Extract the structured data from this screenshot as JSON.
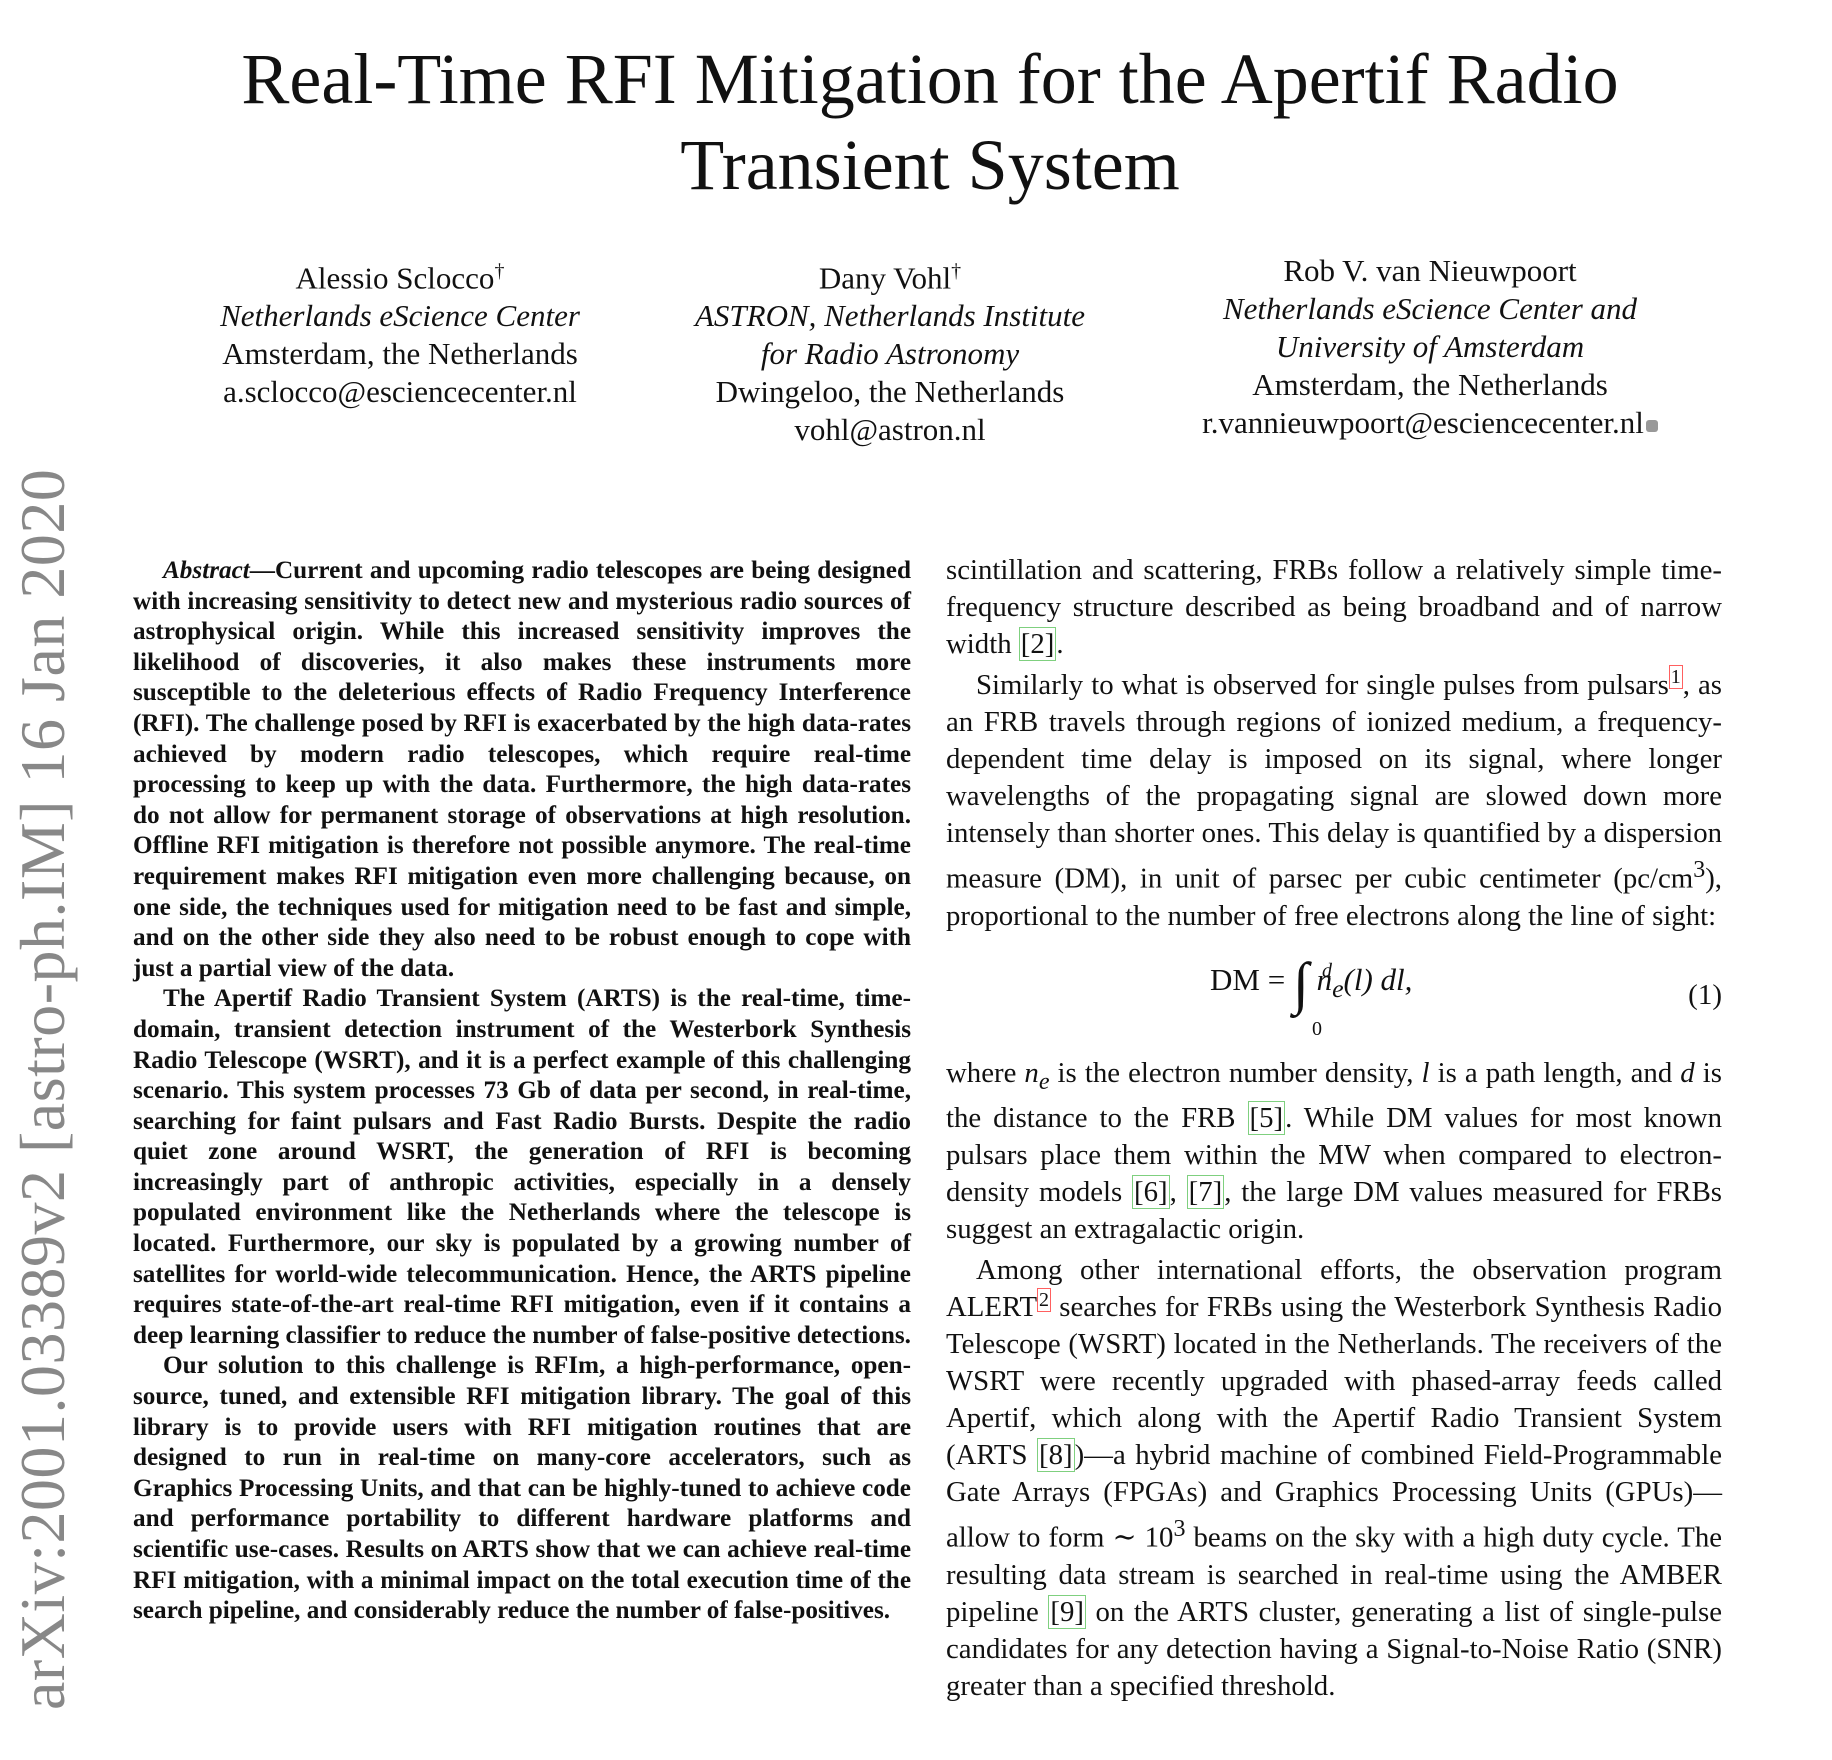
{
  "title_lines": [
    "Real-Time RFI Mitigation for the Apertif Radio",
    "Transient System"
  ],
  "authors": [
    {
      "name": "Alessio Sclocco",
      "mark": "†",
      "aff_lines": [
        "Netherlands eScience Center"
      ],
      "loc_lines": [
        "Amsterdam, the Netherlands"
      ],
      "email": "a.sclocco@esciencecenter.nl"
    },
    {
      "name": "Dany Vohl",
      "mark": "†",
      "aff_lines": [
        "ASTRON, Netherlands Institute",
        "for Radio Astronomy"
      ],
      "loc_lines": [
        "Dwingeloo, the Netherlands"
      ],
      "email": "vohl@astron.nl"
    },
    {
      "name": "Rob V. van Nieuwpoort",
      "mark": "",
      "aff_lines": [
        "Netherlands eScience Center and",
        "University of Amsterdam"
      ],
      "loc_lines": [
        "Amsterdam, the Netherlands"
      ],
      "email": "r.vannieuwpoort@esciencecenter.nl"
    }
  ],
  "sidebar": "arXiv:2001.03389v2  [astro-ph.IM]  16 Jan 2020",
  "abstract": {
    "label": "Abstract",
    "p1": "—Current and upcoming radio telescopes are being designed with increasing sensitivity to detect new and mysterious radio sources of astrophysical origin. While this increased sensitivity improves the likelihood of discoveries, it also makes these instruments more susceptible to the deleterious effects of Radio Frequency Interference (RFI). The challenge posed by RFI is exacerbated by the high data-rates achieved by modern radio telescopes, which require real-time processing to keep up with the data. Furthermore, the high data-rates do not allow for permanent storage of observations at high resolution. Offline RFI mitigation is therefore not possible anymore. The real-time requirement makes RFI mitigation even more challenging because, on one side, the techniques used for mitigation need to be fast and simple, and on the other side they also need to be robust enough to cope with just a partial view of the data.",
    "p2": "The Apertif Radio Transient System (ARTS) is the real-time, time-domain, transient detection instrument of the Westerbork Synthesis Radio Telescope (WSRT), and it is a perfect example of this challenging scenario. This system processes 73 Gb of data per second, in real-time, searching for faint pulsars and Fast Radio Bursts. Despite the radio quiet zone around WSRT, the generation of RFI is becoming increasingly part of anthropic activities, especially in a densely populated environment like the Netherlands where the telescope is located. Furthermore, our sky is populated by a growing number of satellites for world-wide telecommunication. Hence, the ARTS pipeline requires state-of-the-art real-time RFI mitigation, even if it contains a deep learning classifier to reduce the number of false-positive detections.",
    "p3": "Our solution to this challenge is RFIm, a high-performance, open-source, tuned, and extensible RFI mitigation library. The goal of this library is to provide users with RFI mitigation routines that are designed to run in real-time on many-core accelerators, such as Graphics Processing Units, and that can be highly-tuned to achieve code and performance portability to different hardware platforms and scientific use-cases. Results on ARTS show that we can achieve real-time RFI mitigation, with a minimal impact on the total execution time of the search pipeline, and considerably reduce the number of false-positives."
  },
  "right": {
    "r1a": "scintillation and scattering, FRBs follow a relatively simple time-frequency structure described as being broadband and of narrow width ",
    "r1c": "[2]",
    "r1b": ".",
    "r2a": "Similarly to what is observed for single pulses from pulsars",
    "r2fn": "1",
    "r2b": ", as an FRB travels through regions of ionized medium, a frequency-dependent time delay is imposed on its signal, where longer wavelengths of the propagating signal are slowed down more intensely than shorter ones. This delay is quantified by a dispersion measure (DM), in unit of parsec per cubic centimeter (pc/cm",
    "r2sup": "3",
    "r2c": "), proportional to the number of free electrons along the line of sight:",
    "eq_lhs": "DM = ",
    "eq_upper": "d",
    "eq_lower": "0",
    "eq_body": "n",
    "eq_sub": "e",
    "eq_rest": "(l) dl,",
    "eq_num": "(1)",
    "r3a": "where ",
    "r3ne": "n",
    "r3nesub": "e",
    "r3b": " is the electron number density, ",
    "r3l": "l",
    "r3c": " is a path length, and ",
    "r3d": "d",
    "r3e": " is the distance to the FRB ",
    "r3cite1": "[5]",
    "r3f": ". While DM values for most known pulsars place them within the MW when compared to electron-density models ",
    "r3cite2": "[6]",
    "r3g": ", ",
    "r3cite3": "[7]",
    "r3h": ", the large DM values measured for FRBs suggest an extragalactic origin.",
    "r4a": "Among other international efforts, the observation program ALERT",
    "r4fn": "2",
    "r4b": " searches for FRBs using the Westerbork Synthesis Radio Telescope (WSRT) located in the Netherlands. The receivers of the WSRT were recently upgraded with phased-array feeds called Apertif, which along with the Apertif Radio Transient System (ARTS ",
    "r4cite1": "[8]",
    "r4c": ")—a hybrid machine of combined Field-Programmable Gate Arrays (FPGAs) and Graphics Processing Units (GPUs)—allow to form ∼ 10",
    "r4sup": "3",
    "r4d": " beams on the sky with a high duty cycle. The resulting data stream is searched in real-time using the AMBER pipeline ",
    "r4cite2": "[9]",
    "r4e": " on the ARTS cluster, generating a list of single-pulse candidates for any detection having a Signal-to-Noise Ratio (SNR) greater than a specified threshold."
  }
}
